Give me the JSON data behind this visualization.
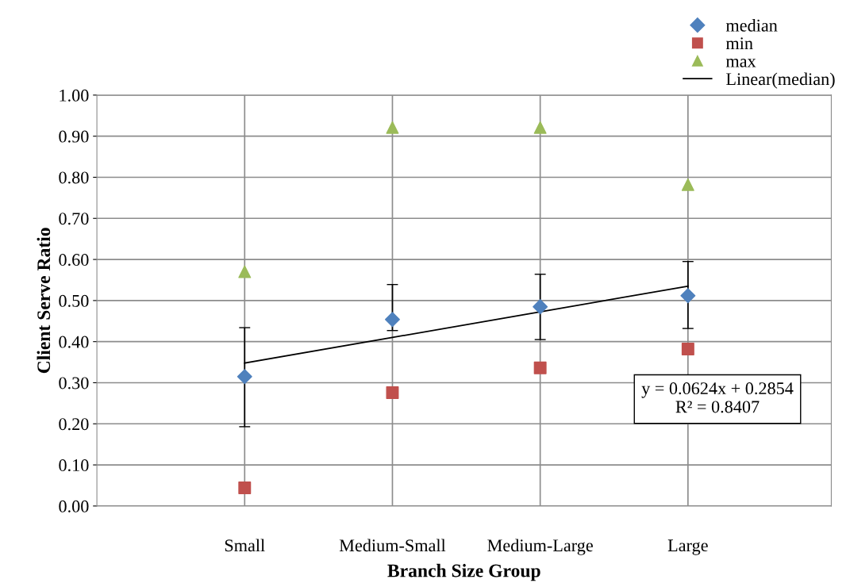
{
  "chart_data": {
    "type": "scatter",
    "xlabel": "Branch Size Group",
    "ylabel": "Client Serve Ratio",
    "categories": [
      "Small",
      "Medium-Small",
      "Medium-Large",
      "Large"
    ],
    "series": [
      {
        "name": "median",
        "color": "#4f81bd",
        "marker": "diamond",
        "values": [
          0.315,
          0.454,
          0.485,
          0.512
        ],
        "errors": [
          [
            0.193,
            0.434
          ],
          [
            0.427,
            0.539
          ],
          [
            0.405,
            0.564
          ],
          [
            0.432,
            0.595
          ]
        ]
      },
      {
        "name": "min",
        "color": "#c0504d",
        "marker": "square",
        "values": [
          0.044,
          0.276,
          0.336,
          0.382
        ]
      },
      {
        "name": "max",
        "color": "#9bbb59",
        "marker": "triangle",
        "values": [
          0.57,
          0.921,
          0.921,
          0.782
        ]
      },
      {
        "name": "Linear(median)",
        "type": "line",
        "color": "#000000",
        "marker": "none",
        "line_style": "solid",
        "values": [
          0.3478,
          0.4102,
          0.4726,
          0.535
        ]
      }
    ],
    "ylim": [
      0,
      1
    ],
    "yticks": [
      {
        "value": 0,
        "label": "0.00"
      },
      {
        "value": 0.1,
        "label": "0.10"
      },
      {
        "value": 0.2,
        "label": "0.20"
      },
      {
        "value": 0.3,
        "label": "0.30"
      },
      {
        "value": 0.4,
        "label": "0.40"
      },
      {
        "value": 0.5,
        "label": "0.50"
      },
      {
        "value": 0.6,
        "label": "0.60"
      },
      {
        "value": 0.7,
        "label": "0.70"
      },
      {
        "value": 0.8,
        "label": "0.80"
      },
      {
        "value": 0.9,
        "label": "0.90"
      },
      {
        "value": 1,
        "label": "1.00"
      }
    ],
    "annotations": [
      "y = 0.0624x + 0.2854\nR² = 0.8407"
    ],
    "grid": true,
    "legend": "top right"
  }
}
